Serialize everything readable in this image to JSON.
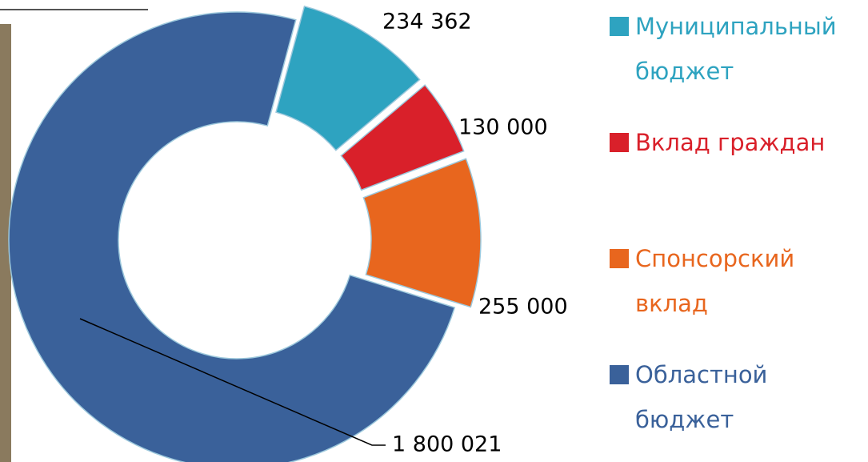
{
  "chart_data": {
    "type": "donut",
    "categories": [
      "Муниципальный бюджет",
      "Вклад граждан",
      "Спонсорский вклад",
      "Областной бюджет"
    ],
    "values": [
      234362,
      130000,
      255000,
      1800021
    ],
    "value_labels": [
      "234 362",
      "130 000",
      "255 000",
      "1 800 021"
    ],
    "colors": [
      "#2ea3c0",
      "#d9202a",
      "#e8661e",
      "#3a619a"
    ],
    "exploded": [
      true,
      true,
      true,
      false
    ]
  }
}
